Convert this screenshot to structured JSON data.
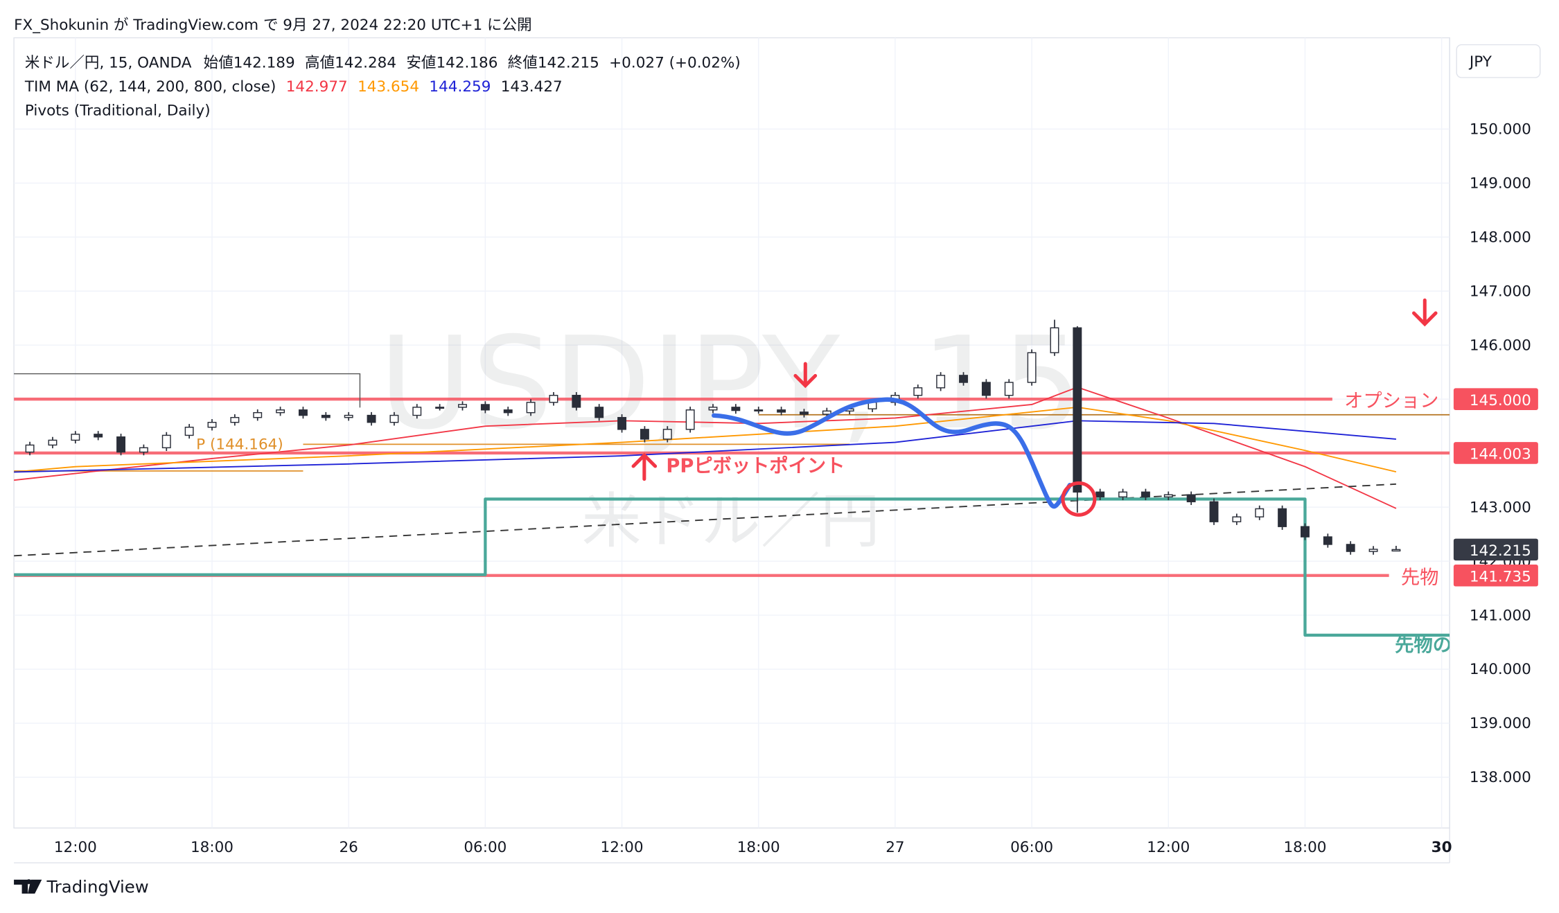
{
  "header": {
    "publish": "FX_Shokunin が TradingView.com で 9月 27, 2024 22:20 UTC+1 に公開"
  },
  "chart_data": {
    "type": "candlestick",
    "symbol": "米ドル／円, 15, OANDA",
    "ohlc_labels": [
      "始値142.189",
      "高値142.284",
      "安値142.186",
      "終値142.215"
    ],
    "change": "+0.027 (+0.02%)",
    "indicator": "TIM MA (62, 144, 200, 800, close)",
    "indicator_values": [
      {
        "label": "142.977",
        "color": "#f23645"
      },
      {
        "label": "143.654",
        "color": "#ff9800"
      },
      {
        "label": "144.259",
        "color": "#1e22d6"
      },
      {
        "label": "143.427",
        "color": "#131722"
      }
    ],
    "pivots_label": "Pivots (Traditional, Daily)",
    "watermark": "USDJPY, 15",
    "watermark_sub": "米ドル／円",
    "currency": "JPY",
    "up_color": "#ffffff",
    "down_color": "#2a2e39",
    "x": [
      10,
      11,
      12,
      13,
      14,
      15,
      16,
      17,
      18,
      19,
      20,
      21,
      22,
      23,
      24,
      25,
      26,
      27,
      28,
      29,
      30,
      31,
      32,
      33,
      34,
      35,
      36,
      37,
      38,
      39,
      40,
      41,
      42,
      43,
      44,
      45,
      46,
      47,
      48,
      49,
      50,
      51,
      52,
      53,
      54,
      55,
      56,
      57,
      58,
      59,
      60,
      61,
      62,
      63,
      64,
      65,
      66,
      67,
      68,
      69,
      70
    ],
    "open": [
      144.02,
      144.15,
      144.24,
      144.35,
      144.3,
      144.02,
      144.1,
      144.33,
      144.48,
      144.57,
      144.66,
      144.75,
      144.8,
      144.7,
      144.66,
      144.7,
      144.57,
      144.7,
      144.85,
      144.85,
      144.9,
      144.8,
      144.75,
      144.94,
      145.07,
      144.85,
      144.66,
      144.44,
      144.26,
      144.44,
      144.8,
      144.85,
      144.79,
      144.8,
      144.76,
      144.72,
      144.78,
      144.82,
      144.94,
      145.07,
      145.21,
      145.44,
      145.31,
      145.07,
      145.31,
      145.86,
      146.32,
      143.28,
      143.19,
      143.28,
      143.19,
      143.23,
      143.1,
      142.73,
      142.82,
      142.97,
      142.64,
      142.45,
      142.31,
      142.18,
      142.189
    ],
    "high": [
      144.21,
      144.3,
      144.41,
      144.41,
      144.36,
      144.16,
      144.39,
      144.54,
      144.63,
      144.72,
      144.81,
      144.86,
      144.86,
      144.76,
      144.76,
      144.76,
      144.76,
      144.91,
      144.91,
      144.96,
      144.96,
      144.86,
      145.0,
      145.13,
      145.13,
      144.91,
      144.72,
      144.5,
      144.5,
      144.86,
      144.91,
      144.91,
      144.86,
      144.86,
      144.82,
      144.84,
      144.88,
      145.0,
      145.13,
      145.27,
      145.5,
      145.5,
      145.37,
      145.37,
      145.92,
      146.47,
      146.35,
      143.34,
      143.34,
      143.34,
      143.29,
      143.29,
      143.16,
      142.88,
      143.03,
      143.03,
      142.7,
      142.51,
      142.37,
      142.28,
      142.284
    ],
    "low": [
      143.96,
      144.09,
      144.18,
      144.24,
      143.96,
      143.96,
      144.04,
      144.27,
      144.42,
      144.51,
      144.6,
      144.69,
      144.64,
      144.6,
      144.6,
      144.51,
      144.51,
      144.64,
      144.79,
      144.79,
      144.74,
      144.69,
      144.69,
      144.88,
      144.79,
      144.6,
      144.38,
      144.2,
      144.2,
      144.38,
      144.74,
      144.73,
      144.73,
      144.7,
      144.66,
      144.66,
      144.72,
      144.76,
      144.88,
      145.01,
      145.15,
      145.25,
      145.01,
      145.01,
      145.25,
      145.8,
      142.9,
      143.13,
      143.13,
      143.13,
      143.13,
      143.04,
      142.67,
      142.67,
      142.76,
      142.58,
      142.39,
      142.25,
      142.12,
      142.12,
      142.186
    ],
    "close": [
      144.15,
      144.24,
      144.35,
      144.3,
      144.02,
      144.1,
      144.33,
      144.48,
      144.57,
      144.66,
      144.75,
      144.8,
      144.7,
      144.66,
      144.7,
      144.57,
      144.7,
      144.85,
      144.85,
      144.9,
      144.8,
      144.75,
      144.94,
      145.07,
      144.85,
      144.66,
      144.44,
      144.26,
      144.44,
      144.8,
      144.85,
      144.79,
      144.8,
      144.76,
      144.72,
      144.78,
      144.82,
      144.94,
      145.07,
      145.21,
      145.44,
      145.31,
      145.07,
      145.31,
      145.86,
      146.32,
      143.28,
      143.19,
      143.28,
      143.19,
      143.23,
      143.1,
      142.73,
      142.82,
      142.97,
      142.64,
      142.45,
      142.31,
      142.18,
      142.22,
      142.215
    ],
    "lines": [
      {
        "color": "#f23645",
        "x": [
          9.3,
          18,
          24,
          30,
          36,
          42,
          48,
          54,
          56,
          60,
          66,
          70
        ],
        "values": [
          143.5,
          143.9,
          144.15,
          144.5,
          144.6,
          144.55,
          144.65,
          144.9,
          145.22,
          144.65,
          143.75,
          142.977
        ]
      },
      {
        "color": "#ff9800",
        "x": [
          9.3,
          12,
          24,
          36,
          48,
          56,
          60,
          66,
          70
        ],
        "values": [
          143.65,
          143.75,
          143.95,
          144.2,
          144.5,
          144.85,
          144.6,
          144.05,
          143.654
        ]
      },
      {
        "color": "#1e22d6",
        "x": [
          9.3,
          24,
          36,
          48,
          56,
          62,
          70
        ],
        "values": [
          143.65,
          143.8,
          143.95,
          144.2,
          144.6,
          144.55,
          144.259
        ]
      },
      {
        "color": "#333333",
        "dash": true,
        "x": [
          9.3,
          70
        ],
        "values": [
          142.1,
          143.427
        ]
      },
      {
        "color": "#4aa89a",
        "width": 3,
        "x": [
          9.3,
          30,
          30,
          66,
          66,
          72.35
        ],
        "values": [
          141.75,
          141.75,
          143.15,
          143.15,
          140.63,
          140.63
        ]
      }
    ],
    "pivots": [
      {
        "value": 143.67,
        "x": [
          9.3,
          22
        ],
        "color": "#e0902a"
      },
      {
        "value": 144.164,
        "x": [
          22,
          46
        ],
        "color": "#e0902a",
        "label": "P (144.164)"
      },
      {
        "value": 144.71,
        "x": [
          42,
          72.35
        ],
        "color": "#b5731e"
      }
    ],
    "levels": [
      {
        "value": 145,
        "label": "145.000",
        "note": "オプション",
        "color": "#f7525f"
      },
      {
        "value": 144.003,
        "label": "144.003",
        "color": "#f7525f"
      },
      {
        "value": 141.735,
        "label": "141.735",
        "note": "先物",
        "color": "#f7525f"
      }
    ],
    "last_price": {
      "value": 142.215,
      "label": "142.215"
    },
    "annotations": [
      "PPピボットポイント",
      "先物の"
    ],
    "xlim": [
      9.3,
      72.35
    ],
    "xticks": [
      {
        "value": 12,
        "label": "12:00"
      },
      {
        "value": 18,
        "label": "18:00"
      },
      {
        "value": 24,
        "label": "26"
      },
      {
        "value": 30,
        "label": "06:00"
      },
      {
        "value": 36,
        "label": "12:00"
      },
      {
        "value": 42,
        "label": "18:00"
      },
      {
        "value": 48,
        "label": "27"
      },
      {
        "value": 54,
        "label": "06:00"
      },
      {
        "value": 60,
        "label": "12:00"
      },
      {
        "value": 66,
        "label": "18:00"
      },
      {
        "value": 72,
        "label": "30"
      }
    ],
    "ylim": [
      137.06,
      151.69
    ],
    "yticks": [
      {
        "value": 138,
        "label": "138.000"
      },
      {
        "value": 139,
        "label": "139.000"
      },
      {
        "value": 140,
        "label": "140.000"
      },
      {
        "value": 141,
        "label": "141.000"
      },
      {
        "value": 142,
        "label": "142.000"
      },
      {
        "value": 143,
        "label": "143.000"
      },
      {
        "value": 144,
        "label": "144.000"
      },
      {
        "value": 145,
        "label": "145.000"
      },
      {
        "value": 146,
        "label": "146.000"
      },
      {
        "value": 147,
        "label": "147.000"
      },
      {
        "value": 148,
        "label": "148.000"
      },
      {
        "value": 149,
        "label": "149.000"
      },
      {
        "value": 150,
        "label": "150.000"
      }
    ],
    "grid": true
  },
  "footer": {
    "brand": "TradingView"
  }
}
